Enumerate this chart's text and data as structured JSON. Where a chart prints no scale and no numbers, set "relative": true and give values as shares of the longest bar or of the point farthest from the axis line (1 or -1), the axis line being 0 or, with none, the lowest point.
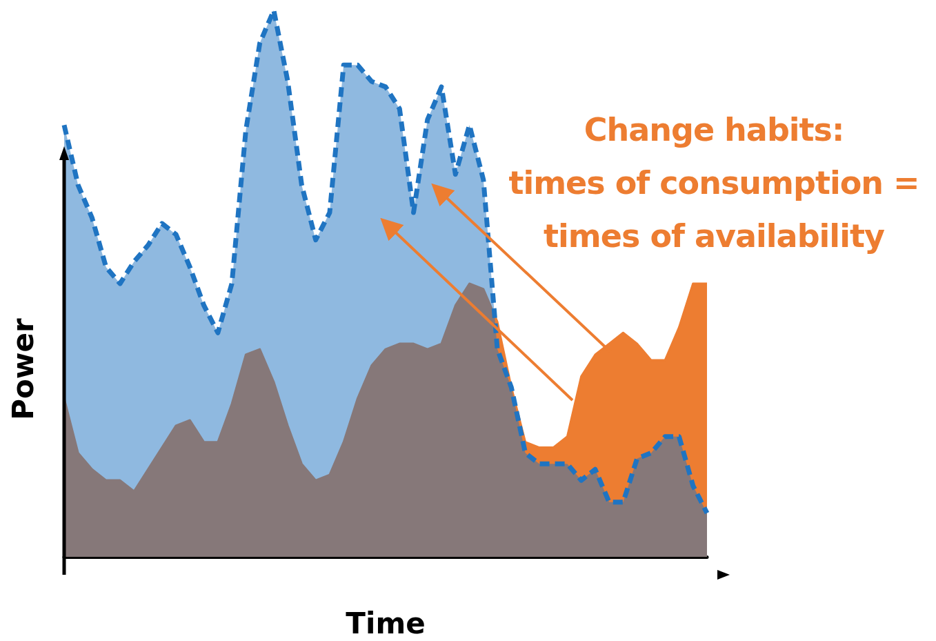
{
  "chart_data": {
    "type": "area",
    "relative": true,
    "xlabel": "Time",
    "ylabel": "Power",
    "grid": false,
    "marker": "none",
    "annotations": [
      "Change habits:\ntimes of consumption =\ntimes of availability"
    ],
    "categories": [
      null,
      null,
      null,
      null,
      null,
      null,
      null,
      null,
      null,
      null,
      null,
      null,
      null,
      null,
      null,
      null,
      null,
      null,
      null,
      null,
      null,
      null,
      null,
      null,
      null,
      null,
      null,
      null,
      null,
      null,
      null,
      null,
      null,
      null,
      null,
      null,
      null,
      null,
      null,
      null,
      null,
      null,
      null,
      null,
      null,
      null,
      null
    ],
    "series": [
      {
        "color": "#ed7d31",
        "line_style": "solid",
        "values": [
          0.29,
          0.19,
          0.16,
          0.14,
          0.14,
          0.12,
          0.16,
          0.2,
          0.24,
          0.25,
          0.21,
          0.21,
          0.28,
          0.37,
          0.38,
          0.32,
          0.24,
          0.17,
          0.14,
          0.15,
          0.21,
          0.29,
          0.35,
          0.38,
          0.39,
          0.39,
          0.38,
          0.39,
          0.46,
          0.5,
          0.49,
          0.43,
          0.31,
          0.21,
          0.2,
          0.2,
          0.22,
          0.33,
          0.37,
          0.39,
          0.41,
          0.39,
          0.36,
          0.36,
          0.42,
          0.5,
          0.5
        ]
      },
      {
        "color": "#1f74c2",
        "line_style": "dashed",
        "values": [
          0.79,
          0.68,
          0.62,
          0.53,
          0.5,
          0.54,
          0.57,
          0.61,
          0.59,
          0.53,
          0.46,
          0.41,
          0.5,
          0.78,
          0.94,
          1.0,
          0.87,
          0.68,
          0.58,
          0.63,
          0.9,
          0.9,
          0.87,
          0.86,
          0.82,
          0.63,
          0.8,
          0.86,
          0.7,
          0.79,
          0.69,
          0.38,
          0.31,
          0.19,
          0.17,
          0.17,
          0.17,
          0.14,
          0.16,
          0.1,
          0.1,
          0.18,
          0.19,
          0.22,
          0.22,
          0.13,
          0.08
        ]
      }
    ]
  }
}
